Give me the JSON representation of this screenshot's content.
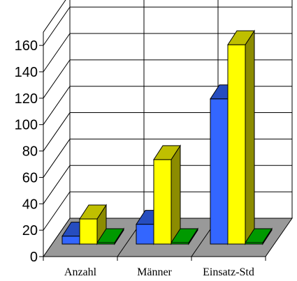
{
  "chart_data": {
    "type": "bar",
    "categories": [
      "Anzahl",
      "Männer",
      "Einsatz-Std"
    ],
    "series": [
      {
        "values": [
          6,
          15,
          110
        ],
        "color": "#3366ff"
      },
      {
        "values": [
          19,
          64,
          151
        ],
        "color": "#ffff00"
      },
      {
        "values": [
          0,
          0,
          0
        ],
        "color": "#00cc00"
      }
    ],
    "yticks": [
      0,
      20,
      40,
      60,
      80,
      100,
      120,
      140,
      160
    ],
    "ylim": [
      0,
      170
    ],
    "title": "",
    "xlabel": "",
    "ylabel": "",
    "grid": true,
    "legend": "none",
    "three_d": true
  }
}
